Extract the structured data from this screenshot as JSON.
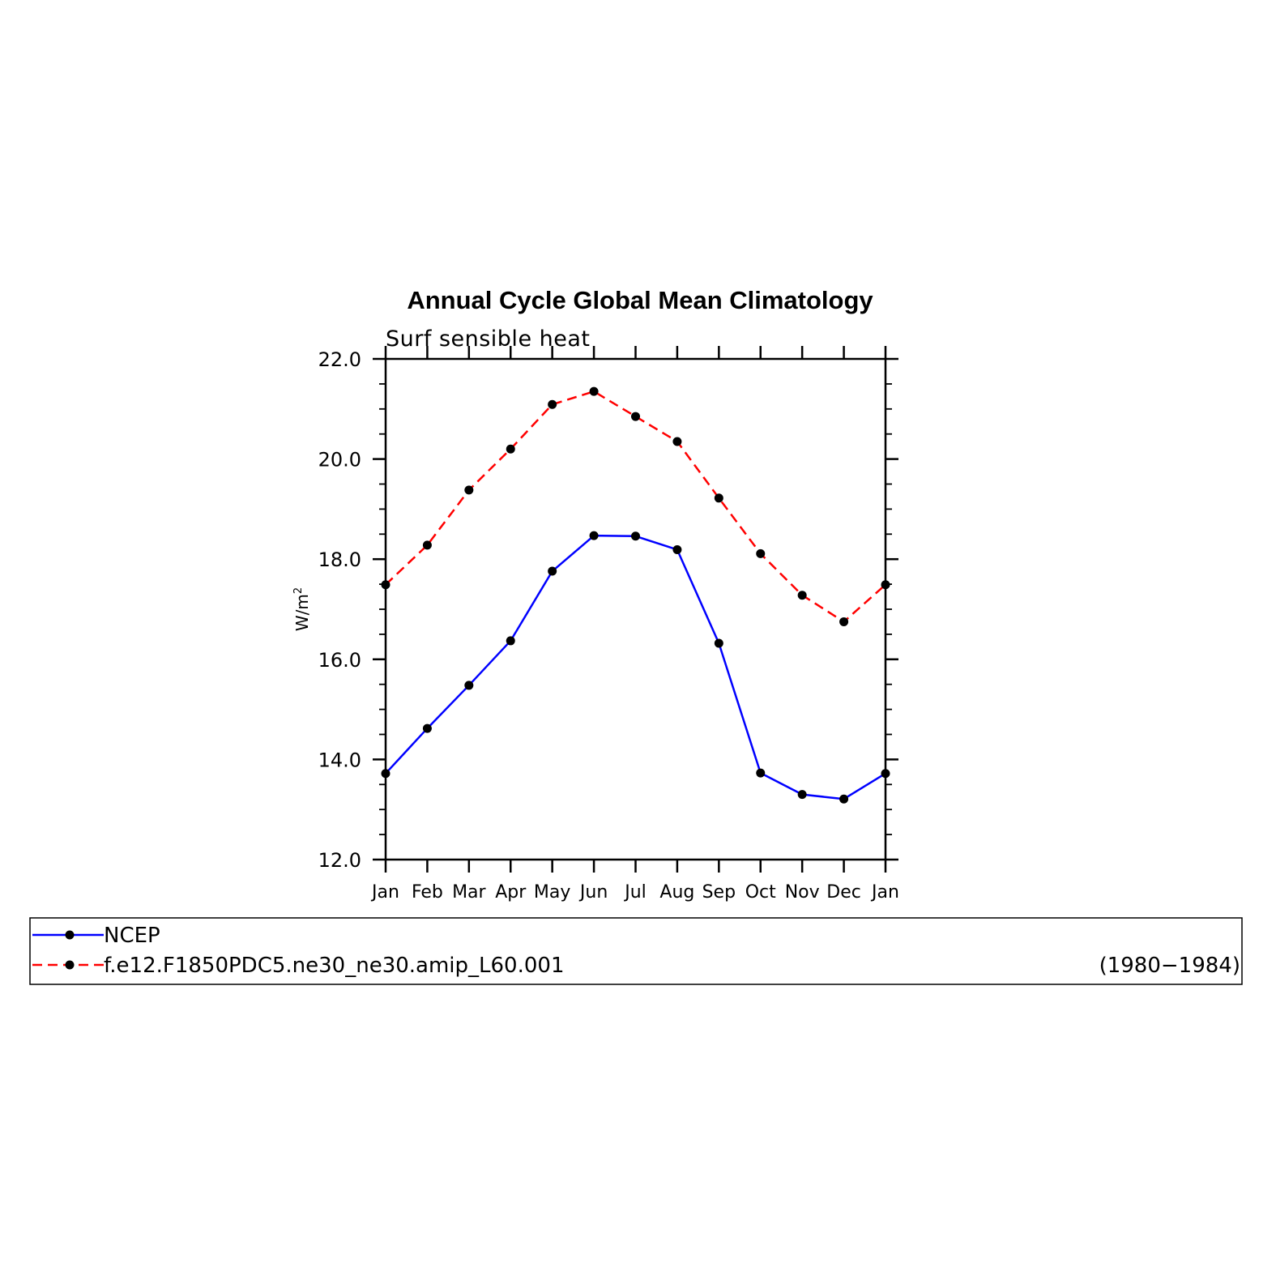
{
  "chart_data": {
    "type": "line",
    "title": "Annual Cycle Global Mean Climatology",
    "subtitle": "Surf sensible heat",
    "xlabel": "",
    "ylabel": "W/m",
    "ylabel_superscript": "2",
    "categories": [
      "Jan",
      "Feb",
      "Mar",
      "Apr",
      "May",
      "Jun",
      "Jul",
      "Aug",
      "Sep",
      "Oct",
      "Nov",
      "Dec",
      "Jan"
    ],
    "ylim": [
      12.0,
      22.0
    ],
    "yticks": [
      "12.0",
      "14.0",
      "16.0",
      "18.0",
      "20.0",
      "22.0"
    ],
    "grid": false,
    "legend_position": "bottom",
    "series": [
      {
        "name": "NCEP",
        "color": "#0000ff",
        "line_style": "solid",
        "marker": "circle",
        "values": [
          13.72,
          14.62,
          15.48,
          16.37,
          17.76,
          18.47,
          18.46,
          18.19,
          16.32,
          13.73,
          13.3,
          13.21,
          13.72
        ]
      },
      {
        "name": "f.e12.F1850PDC5.ne30_ne30.amip_L60.001",
        "color": "#ff0000",
        "line_style": "dashed",
        "marker": "circle",
        "values": [
          17.49,
          18.28,
          19.38,
          20.2,
          21.09,
          21.35,
          20.85,
          20.35,
          19.22,
          18.11,
          17.28,
          16.75,
          17.49
        ]
      }
    ],
    "annotation": "(1980−1984)"
  }
}
